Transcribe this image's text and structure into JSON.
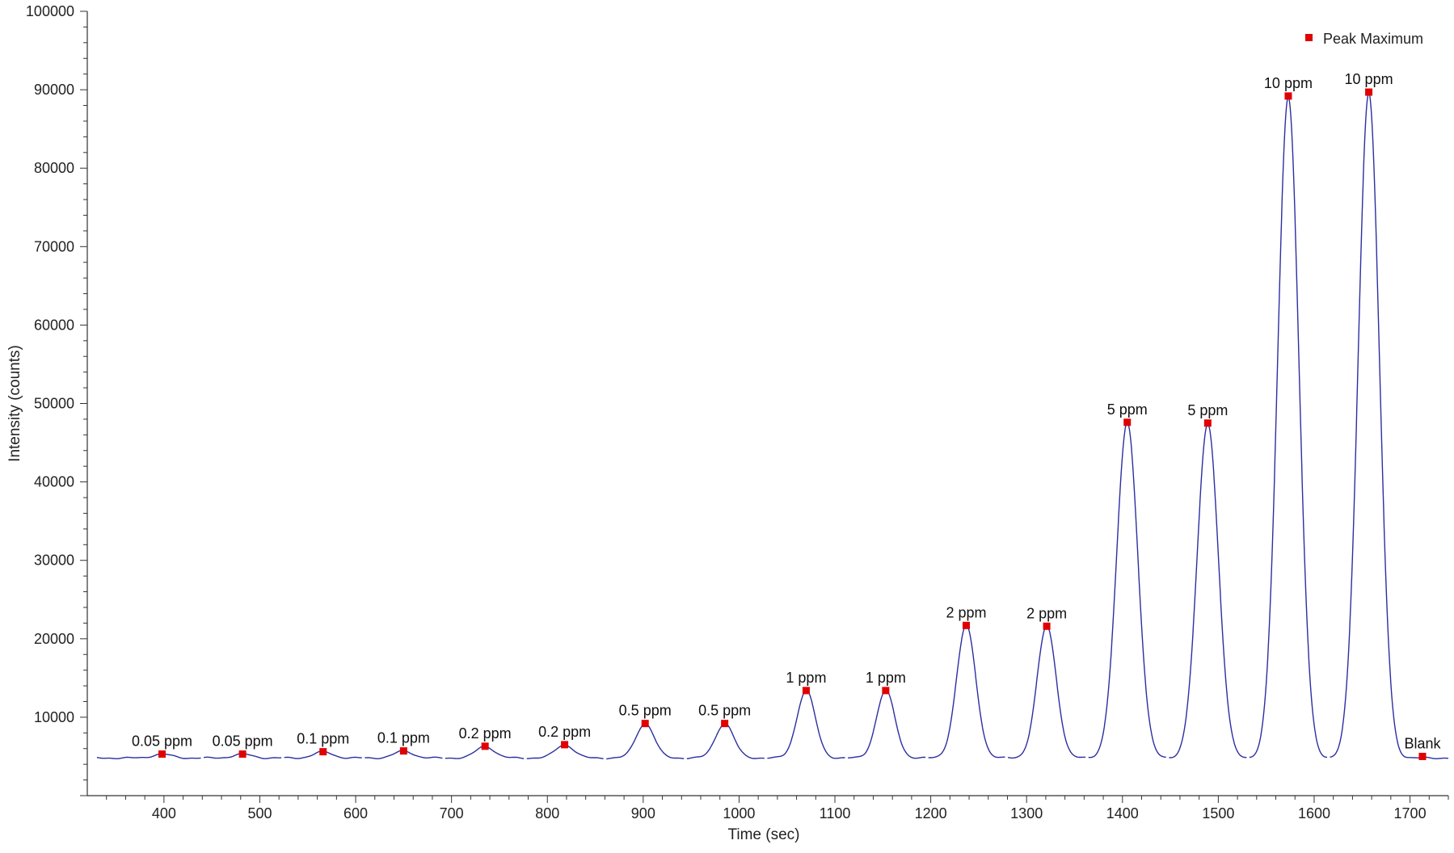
{
  "chart_data": {
    "type": "line",
    "title": "",
    "xlabel": "Time (sec)",
    "ylabel": "Intensity (counts)",
    "xlim": [
      320,
      1740
    ],
    "ylim": [
      0,
      100000
    ],
    "x_ticks": [
      400,
      500,
      600,
      700,
      800,
      900,
      1000,
      1100,
      1200,
      1300,
      1400,
      1500,
      1600,
      1700
    ],
    "y_ticks": [
      10000,
      20000,
      30000,
      40000,
      50000,
      60000,
      70000,
      80000,
      90000,
      100000
    ],
    "grid": false,
    "legend": {
      "position": "top-right",
      "entries": [
        {
          "name": "Peak Maximum",
          "color": "#e00000",
          "marker": "square"
        }
      ]
    },
    "baseline": 4800,
    "line_color": "#2b2fa0",
    "marker_color": "#e00000",
    "peaks": [
      {
        "label": "0.05 ppm",
        "time": 398,
        "intensity": 5300
      },
      {
        "label": "0.05 ppm",
        "time": 482,
        "intensity": 5300
      },
      {
        "label": "0.1 ppm",
        "time": 566,
        "intensity": 5600
      },
      {
        "label": "0.1 ppm",
        "time": 650,
        "intensity": 5700
      },
      {
        "label": "0.2 ppm",
        "time": 735,
        "intensity": 6300
      },
      {
        "label": "0.2 ppm",
        "time": 818,
        "intensity": 6500
      },
      {
        "label": "0.5 ppm",
        "time": 902,
        "intensity": 9200
      },
      {
        "label": "0.5 ppm",
        "time": 985,
        "intensity": 9200
      },
      {
        "label": "1 ppm",
        "time": 1070,
        "intensity": 13400
      },
      {
        "label": "1 ppm",
        "time": 1153,
        "intensity": 13400
      },
      {
        "label": "2 ppm",
        "time": 1237,
        "intensity": 21700
      },
      {
        "label": "2 ppm",
        "time": 1321,
        "intensity": 21600
      },
      {
        "label": "5 ppm",
        "time": 1405,
        "intensity": 47600
      },
      {
        "label": "5 ppm",
        "time": 1489,
        "intensity": 47500
      },
      {
        "label": "10 ppm",
        "time": 1573,
        "intensity": 89200
      },
      {
        "label": "10 ppm",
        "time": 1657,
        "intensity": 89700
      },
      {
        "label": "Blank",
        "time": 1713,
        "intensity": 5000
      }
    ]
  }
}
